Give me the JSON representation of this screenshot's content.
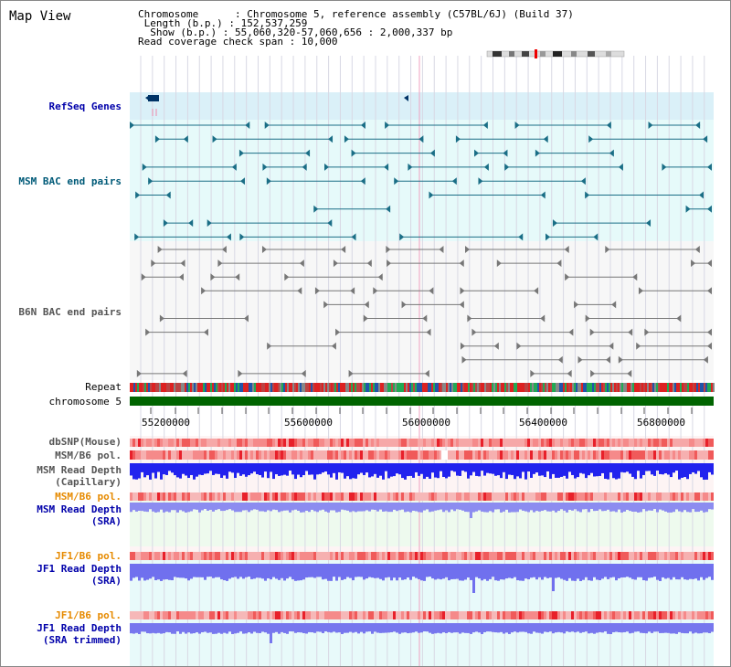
{
  "view_title": "Map View",
  "info": {
    "chromosome_line": "Chromosome      : Chromosome 5, reference assembly (C57BL/6J) (Build 37)",
    "length_line": " Length (b.p.) : 152,537,259",
    "show_line": "  Show (b.p.) : 55,060,320-57,060,656 : 2,000,337 bp",
    "coverage_line": "Read coverage check span : 10,000"
  },
  "tracks": {
    "refseq": "RefSeq Genes",
    "msm_bac": "MSM BAC end pairs",
    "b6n_bac": "B6N BAC end pairs",
    "repeat": "Repeat",
    "chromosome": "chromosome 5",
    "dbsnp": "dbSNP(Mouse)",
    "msm_b6_pol_1": "MSM/B6 pol.",
    "msm_depth_cap_1": "MSM Read Depth",
    "msm_depth_cap_2": "(Capillary)",
    "msm_b6_pol_2": "MSM/B6 pol.",
    "msm_depth_sra_1": "MSM Read Depth",
    "msm_depth_sra_2": "(SRA)",
    "jf1_b6_pol_1": "JF1/B6 pol.",
    "jf1_depth_sra_1": "JF1 Read Depth",
    "jf1_depth_sra_2": "(SRA)",
    "jf1_b6_pol_2": "JF1/B6 pol.",
    "jf1_depth_trim_1": "JF1 Read Depth",
    "jf1_depth_trim_2": "(SRA trimmed)"
  },
  "axis": {
    "ticks": [
      "55200000",
      "55600000",
      "56000000",
      "56400000",
      "56800000"
    ]
  },
  "colors": {
    "refseq_bg": "#daf0f8",
    "msm_bg": "#e6fafa",
    "b6n_bg": "#f7f7f7",
    "chromosome_bar": "#006400",
    "msm_label": "#005a78",
    "blue_label": "#0000aa",
    "orange_label": "#e68a00",
    "depth_capillary": "#2222ee",
    "depth_sra": "#8c8cf0"
  }
}
